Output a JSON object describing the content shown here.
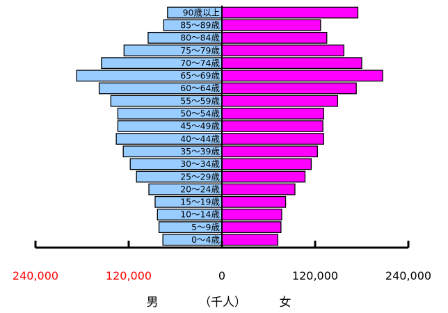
{
  "chart_data": {
    "type": "bar",
    "orientation": "horizontal",
    "categories": [
      "0～4歳",
      "5～9歳",
      "10～14歳",
      "15～19歳",
      "20～24歳",
      "25～29歳",
      "30～34歳",
      "35～39歳",
      "40～44歳",
      "45～49歳",
      "50～54歳",
      "55～59歳",
      "60～64歳",
      "65～69歳",
      "70～74歳",
      "75～79歳",
      "80～84歳",
      "85～89歳",
      "90歳以上"
    ],
    "series": [
      {
        "name": "男",
        "color": "#99ccff",
        "values": [
          76000,
          81000,
          83000,
          86000,
          94000,
          110000,
          118000,
          127000,
          136000,
          134000,
          134000,
          143000,
          158000,
          187000,
          155000,
          126000,
          95000,
          75000,
          70000
        ]
      },
      {
        "name": "女",
        "color": "#ff00ff",
        "values": [
          72000,
          76000,
          77000,
          82000,
          94000,
          107000,
          115000,
          123000,
          131000,
          130000,
          131000,
          149000,
          173000,
          207000,
          180000,
          157000,
          135000,
          127000,
          175000
        ]
      }
    ],
    "xticks": [
      {
        "label": "240,000",
        "value": -240000,
        "color": "#ff0000"
      },
      {
        "label": "120,000",
        "value": -120000,
        "color": "#ff0000"
      },
      {
        "label": "0",
        "value": 0,
        "color": "#000000"
      },
      {
        "label": "120,000",
        "value": 120000,
        "color": "#000000"
      },
      {
        "label": "240,000",
        "value": 240000,
        "color": "#000000"
      }
    ],
    "xlim": [
      -240000,
      240000
    ],
    "left_label": "男",
    "unit_label": "（千人）",
    "right_label": "女",
    "grid": false
  }
}
